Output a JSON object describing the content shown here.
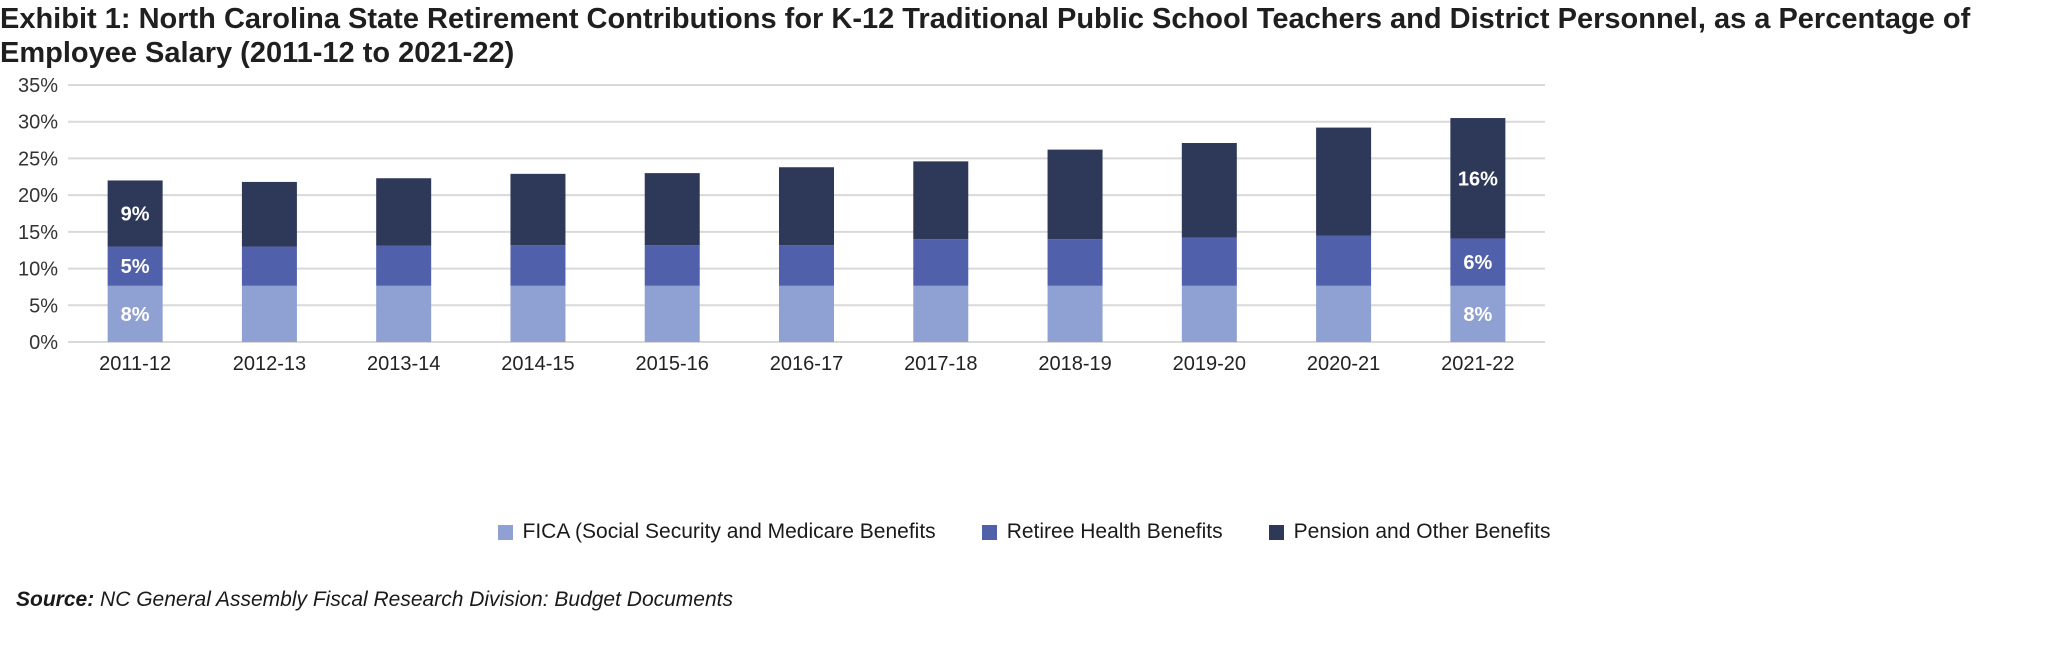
{
  "title": "Exhibit 1: North Carolina State Retirement Contributions for K-12 Traditional Public School Teachers and District Personnel, as a Percentage of Employee Salary (2011-12 to 2021-22)",
  "source": {
    "label": "Source:",
    "text": "NC General Assembly Fiscal Research Division: Budget Documents"
  },
  "chart_data": {
    "type": "bar",
    "stacked": true,
    "categories": [
      "2011-12",
      "2012-13",
      "2013-14",
      "2014-15",
      "2015-16",
      "2016-17",
      "2017-18",
      "2018-19",
      "2019-20",
      "2020-21",
      "2021-22"
    ],
    "series": [
      {
        "name": "FICA (Social Security and Medicare Benefits",
        "color": "#8fa0d2",
        "values": [
          7.65,
          7.65,
          7.65,
          7.65,
          7.65,
          7.65,
          7.65,
          7.65,
          7.65,
          7.65,
          7.65
        ],
        "data_labels": {
          "0": "8%",
          "10": "8%"
        }
      },
      {
        "name": "Retiree Health Benefits",
        "color": "#5060ab",
        "values": [
          5.35,
          5.35,
          5.45,
          5.55,
          5.55,
          5.55,
          6.35,
          6.35,
          6.55,
          6.85,
          6.45
        ],
        "data_labels": {
          "0": "5%",
          "10": "6%"
        }
      },
      {
        "name": "Pension and Other Benefits",
        "color": "#2e3859",
        "values": [
          9.0,
          8.8,
          9.2,
          9.7,
          9.8,
          10.6,
          10.6,
          12.2,
          12.9,
          14.7,
          16.4
        ],
        "data_labels": {
          "0": "9%",
          "10": "16%"
        }
      }
    ],
    "ylim": [
      0,
      35
    ],
    "yticks": [
      "0%",
      "5%",
      "10%",
      "15%",
      "20%",
      "25%",
      "30%",
      "35%"
    ],
    "grid": true,
    "legend": "bottom"
  }
}
